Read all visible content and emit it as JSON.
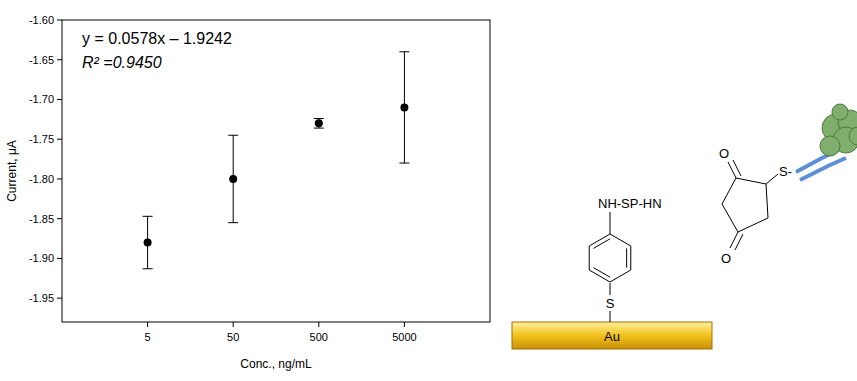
{
  "chart_data": {
    "type": "scatter",
    "x_label": "Conc., ng/mL",
    "y_label": "Current, μA",
    "annotations": [
      "y = 0.0578x – 1.9242",
      "R² =0.9450"
    ],
    "categories": [
      "5",
      "50",
      "500",
      "5000"
    ],
    "values": [
      -1.88,
      -1.8,
      -1.73,
      -1.71
    ],
    "errors": [
      0.033,
      0.055,
      0.006,
      0.07
    ],
    "color": "#000000",
    "marker": "circle",
    "ylim": [
      -1.98,
      -1.6
    ],
    "yticks": [
      {
        "value": -1.6,
        "label": "-1.60"
      },
      -1.65,
      {
        "value": -1.7,
        "label": "-1.70"
      },
      -1.75,
      {
        "value": -1.8,
        "label": "-1.80"
      },
      -1.85,
      {
        "value": -1.9,
        "label": "-1.90"
      },
      -1.95
    ],
    "grid": false
  },
  "diagram": {
    "labels": [
      "NH-SP-HN",
      "O",
      "O",
      "S",
      "S-",
      "Au"
    ]
  }
}
